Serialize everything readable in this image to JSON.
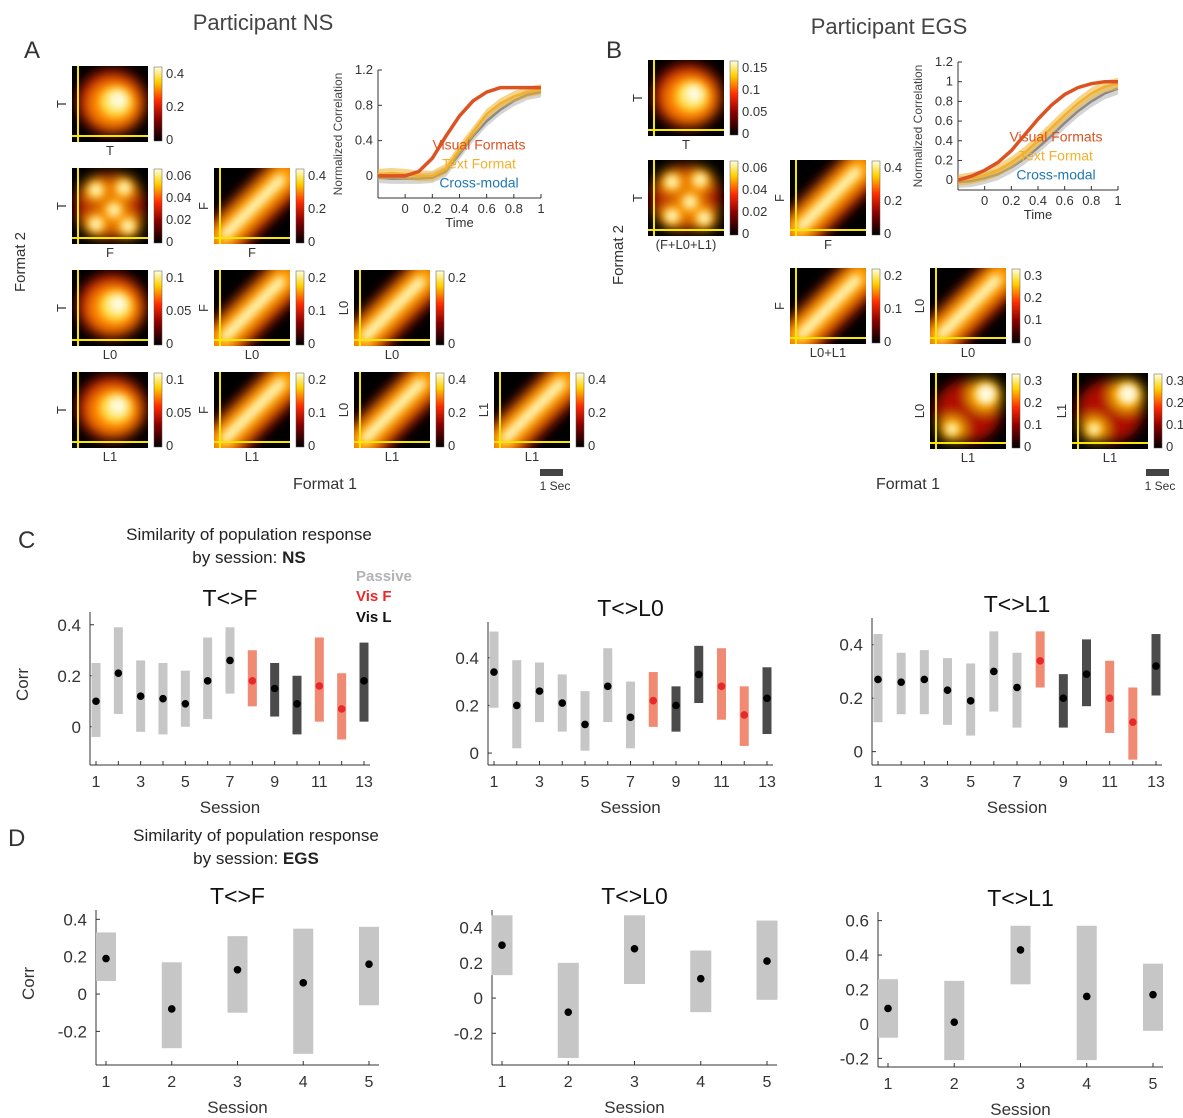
{
  "figure": {
    "panel_labels": {
      "A": "A",
      "B": "B",
      "C": "C",
      "D": "D"
    },
    "participant_ns_title": "Participant NS",
    "participant_egs_title": "Participant EGS",
    "ns_format1_label": "Format 1",
    "ns_format2_label": "Format 2",
    "egs_format1_label": "Format 1",
    "egs_format2_label": "Format 2",
    "scalebar_ns": "1 Sec",
    "scalebar_egs": "1 Sec"
  },
  "colors": {
    "visual": "#dd5222",
    "text": "#f1b12c",
    "cross": "#1f77b4",
    "passive": "#c6c6c6",
    "vis_f": "#f08a72",
    "vis_l": "#4b4b4b",
    "vis_f_point": "#e8292a",
    "yellow_axis": "#f7e600"
  },
  "heatmaps_ns": [
    {
      "ylabel": "T",
      "xlabel": "T",
      "ticks": [
        "0.4",
        "0.2",
        "0"
      ],
      "pattern": "blob"
    },
    {
      "ylabel": "T",
      "xlabel": "F",
      "ticks": [
        "0.06",
        "0.04",
        "0.02",
        "0"
      ],
      "pattern": "cluster"
    },
    {
      "ylabel": "F",
      "xlabel": "F",
      "ticks": [
        "0.4",
        "0.2",
        "0"
      ],
      "pattern": "diag"
    },
    {
      "ylabel": "T",
      "xlabel": "L0",
      "ticks": [
        "0.1",
        "0.05",
        "0"
      ],
      "pattern": "blob"
    },
    {
      "ylabel": "F",
      "xlabel": "L0",
      "ticks": [
        "0.2",
        "0.1",
        "0"
      ],
      "pattern": "diag"
    },
    {
      "ylabel": "L0",
      "xlabel": "L0",
      "ticks": [
        "0.2",
        "0"
      ],
      "pattern": "diag"
    },
    {
      "ylabel": "T",
      "xlabel": "L1",
      "ticks": [
        "0.1",
        "0.05",
        "0"
      ],
      "pattern": "blob"
    },
    {
      "ylabel": "F",
      "xlabel": "L1",
      "ticks": [
        "0.2",
        "0.1",
        "0"
      ],
      "pattern": "diag"
    },
    {
      "ylabel": "L0",
      "xlabel": "L1",
      "ticks": [
        "0.4",
        "0.2",
        "0"
      ],
      "pattern": "diag"
    },
    {
      "ylabel": "L1",
      "xlabel": "L1",
      "ticks": [
        "0.4",
        "0.2",
        "0"
      ],
      "pattern": "diag"
    }
  ],
  "heatmaps_egs": [
    {
      "ylabel": "T",
      "xlabel": "T",
      "ticks": [
        "0.15",
        "0.1",
        "0.05",
        "0"
      ],
      "pattern": "blob"
    },
    {
      "ylabel": "T",
      "xlabel": "(F+L0+L1)",
      "ticks": [
        "0.06",
        "0.04",
        "0.02",
        "0"
      ],
      "pattern": "cluster"
    },
    {
      "ylabel": "F",
      "xlabel": "F",
      "ticks": [
        "0.4",
        "0.2",
        "0"
      ],
      "pattern": "diag"
    },
    {
      "ylabel": "F",
      "xlabel": "L0+L1",
      "ticks": [
        "0.2",
        "0.1",
        "0"
      ],
      "pattern": "diag"
    },
    {
      "ylabel": "L0",
      "xlabel": "L0",
      "ticks": [
        "0.3",
        "0.2",
        "0.1",
        "0"
      ],
      "pattern": "diag"
    },
    {
      "ylabel": "L0",
      "xlabel": "L1",
      "ticks": [
        "0.3",
        "0.2",
        "0.1",
        "0"
      ],
      "pattern": "twoblob"
    },
    {
      "ylabel": "L1",
      "xlabel": "L1",
      "ticks": [
        "0.3",
        "0.2",
        "0.1",
        "0"
      ],
      "pattern": "twoblob"
    }
  ],
  "chart_data": [
    {
      "type": "line",
      "panel": "A-correlation",
      "xlabel": "Time",
      "ylabel": "Normalized Correlation",
      "xlim": [
        -0.2,
        1
      ],
      "ylim": [
        -0.25,
        1.2
      ],
      "xticks": [
        "0",
        "0.2",
        "0.4",
        "0.6",
        "0.8",
        "1"
      ],
      "yticks": [
        "0",
        "0.4",
        "0.8",
        "1.2"
      ],
      "series": [
        {
          "name": "Visual Formats",
          "x": [
            -0.2,
            -0.1,
            0,
            0.1,
            0.2,
            0.3,
            0.4,
            0.5,
            0.6,
            0.7,
            0.8,
            0.9,
            1.0
          ],
          "y": [
            0,
            0,
            0,
            0.05,
            0.2,
            0.45,
            0.68,
            0.85,
            0.95,
            1.0,
            1.0,
            1.0,
            1.0
          ]
        },
        {
          "name": "Text Format",
          "x": [
            -0.2,
            -0.1,
            0,
            0.1,
            0.2,
            0.3,
            0.4,
            0.5,
            0.6,
            0.7,
            0.8,
            0.9,
            1.0
          ],
          "y": [
            0.02,
            0.03,
            0.02,
            0.0,
            0.0,
            0.08,
            0.3,
            0.5,
            0.7,
            0.82,
            0.9,
            0.95,
            0.98
          ]
        },
        {
          "name": "Cross-modal",
          "x": [
            -0.2,
            -0.1,
            0,
            0.1,
            0.2,
            0.3,
            0.4,
            0.5,
            0.6,
            0.7,
            0.8,
            0.9,
            1.0
          ],
          "y": [
            -0.02,
            -0.03,
            -0.03,
            -0.03,
            -0.02,
            0.05,
            0.25,
            0.45,
            0.62,
            0.75,
            0.85,
            0.92,
            0.95
          ]
        }
      ]
    },
    {
      "type": "line",
      "panel": "B-correlation",
      "xlabel": "Time",
      "ylabel": "Normalized Correlation",
      "xlim": [
        -0.2,
        1
      ],
      "ylim": [
        -0.1,
        1.2
      ],
      "xticks": [
        "0",
        "0.2",
        "0.4",
        "0.6",
        "0.8",
        "1"
      ],
      "yticks": [
        "0",
        "0.2",
        "0.4",
        "0.6",
        "0.8",
        "1",
        "1.2"
      ],
      "series": [
        {
          "name": "Visual Formats",
          "x": [
            -0.2,
            -0.1,
            0,
            0.1,
            0.2,
            0.3,
            0.4,
            0.5,
            0.6,
            0.7,
            0.8,
            0.9,
            1.0
          ],
          "y": [
            0,
            0.04,
            0.1,
            0.18,
            0.3,
            0.46,
            0.62,
            0.76,
            0.87,
            0.94,
            0.98,
            1.0,
            1.0
          ]
        },
        {
          "name": "Text Format",
          "x": [
            -0.2,
            -0.1,
            0,
            0.1,
            0.2,
            0.3,
            0.4,
            0.5,
            0.6,
            0.7,
            0.8,
            0.9,
            1.0
          ],
          "y": [
            0,
            0.02,
            0.05,
            0.1,
            0.18,
            0.28,
            0.4,
            0.53,
            0.66,
            0.78,
            0.88,
            0.95,
            0.98
          ]
        },
        {
          "name": "Cross-modal",
          "x": [
            -0.2,
            -0.1,
            0,
            0.1,
            0.2,
            0.3,
            0.4,
            0.5,
            0.6,
            0.7,
            0.8,
            0.9,
            1.0
          ],
          "y": [
            -0.02,
            -0.01,
            0.02,
            0.06,
            0.13,
            0.22,
            0.33,
            0.45,
            0.58,
            0.7,
            0.8,
            0.88,
            0.93
          ]
        }
      ]
    },
    {
      "type": "scatter",
      "panel": "C",
      "title": "T<>F",
      "xlabel": "Session",
      "ylabel": "Corr",
      "ylim": [
        -0.15,
        0.45
      ],
      "yticks": [
        "0",
        "0.2",
        "0.4"
      ],
      "xticks": [
        "1",
        "3",
        "5",
        "7",
        "9",
        "11",
        "13"
      ],
      "x": [
        1,
        2,
        3,
        4,
        5,
        6,
        7,
        8,
        9,
        10,
        11,
        12,
        13
      ],
      "y": [
        0.1,
        0.21,
        0.12,
        0.11,
        0.09,
        0.18,
        0.26,
        0.18,
        0.15,
        0.09,
        0.16,
        0.07,
        0.18
      ],
      "low": [
        -0.04,
        0.05,
        -0.02,
        -0.03,
        0.0,
        0.03,
        0.13,
        0.08,
        0.04,
        -0.03,
        0.02,
        -0.05,
        0.02
      ],
      "high": [
        0.25,
        0.39,
        0.26,
        0.25,
        0.22,
        0.35,
        0.39,
        0.3,
        0.25,
        0.2,
        0.35,
        0.21,
        0.33
      ],
      "condition": [
        "P",
        "P",
        "P",
        "P",
        "P",
        "P",
        "P",
        "F",
        "L",
        "L",
        "F",
        "F",
        "L"
      ]
    },
    {
      "type": "scatter",
      "panel": "C",
      "title": "T<>L0",
      "xlabel": "Session",
      "ylabel": "",
      "ylim": [
        -0.05,
        0.55
      ],
      "yticks": [
        "0",
        "0.2",
        "0.4"
      ],
      "xticks": [
        "1",
        "3",
        "5",
        "7",
        "9",
        "11",
        "13"
      ],
      "x": [
        1,
        2,
        3,
        4,
        5,
        6,
        7,
        8,
        9,
        10,
        11,
        12,
        13
      ],
      "y": [
        0.34,
        0.2,
        0.26,
        0.21,
        0.12,
        0.28,
        0.15,
        0.22,
        0.2,
        0.33,
        0.28,
        0.16,
        0.23
      ],
      "low": [
        0.19,
        0.02,
        0.13,
        0.09,
        0.01,
        0.13,
        0.02,
        0.11,
        0.09,
        0.21,
        0.14,
        0.03,
        0.08
      ],
      "high": [
        0.51,
        0.39,
        0.38,
        0.33,
        0.26,
        0.44,
        0.3,
        0.34,
        0.28,
        0.45,
        0.44,
        0.28,
        0.36
      ],
      "condition": [
        "P",
        "P",
        "P",
        "P",
        "P",
        "P",
        "P",
        "F",
        "L",
        "L",
        "F",
        "F",
        "L"
      ]
    },
    {
      "type": "scatter",
      "panel": "C",
      "title": "T<>L1",
      "xlabel": "Session",
      "ylabel": "",
      "ylim": [
        -0.05,
        0.5
      ],
      "yticks": [
        "0",
        "0.2",
        "0.4"
      ],
      "xticks": [
        "1",
        "3",
        "5",
        "7",
        "9",
        "11",
        "13"
      ],
      "x": [
        1,
        2,
        3,
        4,
        5,
        6,
        7,
        8,
        9,
        10,
        11,
        12,
        13
      ],
      "y": [
        0.27,
        0.26,
        0.27,
        0.23,
        0.19,
        0.3,
        0.24,
        0.34,
        0.2,
        0.29,
        0.2,
        0.11,
        0.32
      ],
      "low": [
        0.11,
        0.14,
        0.14,
        0.1,
        0.06,
        0.15,
        0.09,
        0.24,
        0.09,
        0.17,
        0.07,
        -0.03,
        0.21
      ],
      "high": [
        0.44,
        0.37,
        0.38,
        0.35,
        0.33,
        0.45,
        0.37,
        0.45,
        0.29,
        0.42,
        0.34,
        0.24,
        0.44
      ],
      "condition": [
        "P",
        "P",
        "P",
        "P",
        "P",
        "P",
        "P",
        "F",
        "L",
        "L",
        "F",
        "F",
        "L"
      ]
    },
    {
      "type": "scatter",
      "panel": "D",
      "title": "T<>F",
      "xlabel": "Session",
      "ylabel": "Corr",
      "ylim": [
        -0.38,
        0.45
      ],
      "yticks": [
        "-0.2",
        "0",
        "0.2",
        "0.4"
      ],
      "xticks": [
        "1",
        "2",
        "3",
        "4",
        "5"
      ],
      "x": [
        1,
        2,
        3,
        4,
        5
      ],
      "y": [
        0.19,
        -0.08,
        0.13,
        0.06,
        0.16
      ],
      "low": [
        0.07,
        -0.29,
        -0.1,
        -0.32,
        -0.06
      ],
      "high": [
        0.33,
        0.17,
        0.31,
        0.35,
        0.36
      ],
      "condition": [
        "P",
        "P",
        "P",
        "P",
        "P"
      ]
    },
    {
      "type": "scatter",
      "panel": "D",
      "title": "T<>L0",
      "xlabel": "Session",
      "ylabel": "",
      "ylim": [
        -0.38,
        0.5
      ],
      "yticks": [
        "-0.2",
        "0",
        "0.2",
        "0.4"
      ],
      "xticks": [
        "1",
        "2",
        "3",
        "4",
        "5"
      ],
      "x": [
        1,
        2,
        3,
        4,
        5
      ],
      "y": [
        0.3,
        -0.08,
        0.28,
        0.11,
        0.21
      ],
      "low": [
        0.13,
        -0.34,
        0.08,
        -0.08,
        -0.01
      ],
      "high": [
        0.47,
        0.2,
        0.47,
        0.27,
        0.44
      ],
      "condition": [
        "P",
        "P",
        "P",
        "P",
        "P"
      ]
    },
    {
      "type": "scatter",
      "panel": "D",
      "title": "T<>L1",
      "xlabel": "Session",
      "ylabel": "",
      "ylim": [
        -0.25,
        0.65
      ],
      "yticks": [
        "-0.2",
        "0",
        "0.2",
        "0.4",
        "0.6"
      ],
      "xticks": [
        "1",
        "2",
        "3",
        "4",
        "5"
      ],
      "x": [
        1,
        2,
        3,
        4,
        5
      ],
      "y": [
        0.09,
        0.01,
        0.43,
        0.16,
        0.17
      ],
      "low": [
        -0.08,
        -0.21,
        0.23,
        -0.21,
        -0.04
      ],
      "high": [
        0.26,
        0.25,
        0.57,
        0.57,
        0.35
      ],
      "condition": [
        "P",
        "P",
        "P",
        "P",
        "P"
      ]
    }
  ],
  "panel_c": {
    "title_line1": "Similarity of population response",
    "title_line2": "by session: ",
    "participant": "NS",
    "legend": {
      "passive": "Passive",
      "vis_f": "Vis F",
      "vis_l": "Vis L"
    }
  },
  "panel_d": {
    "title_line1": "Similarity of population response",
    "title_line2": "by session: ",
    "participant": "EGS"
  }
}
